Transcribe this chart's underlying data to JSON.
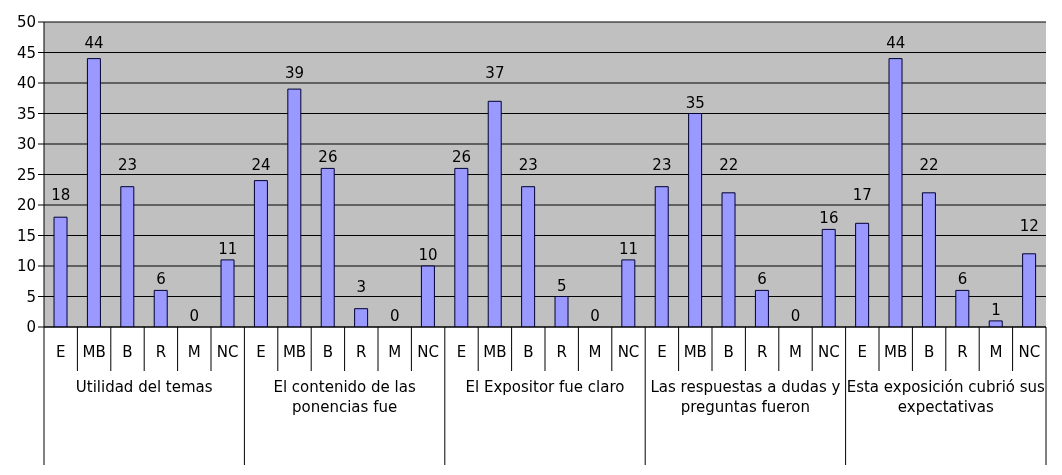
{
  "chart_data": {
    "type": "bar",
    "categories": [
      "E",
      "MB",
      "B",
      "R",
      "M",
      "NC",
      "E",
      "MB",
      "B",
      "R",
      "M",
      "NC",
      "E",
      "MB",
      "B",
      "R",
      "M",
      "NC",
      "E",
      "MB",
      "B",
      "R",
      "M",
      "NC",
      "E",
      "MB",
      "B",
      "R",
      "M",
      "NC"
    ],
    "values": [
      18,
      44,
      23,
      6,
      0,
      11,
      24,
      39,
      26,
      3,
      0,
      10,
      26,
      37,
      23,
      5,
      0,
      11,
      23,
      35,
      22,
      6,
      0,
      16,
      17,
      44,
      22,
      6,
      1,
      12
    ],
    "color": "#9999ff",
    "ylim": [
      0,
      50
    ],
    "yticks": [
      0,
      5,
      10,
      15,
      20,
      25,
      30,
      35,
      40,
      45,
      50
    ],
    "grid": "y",
    "legend": false,
    "data_labels": true,
    "annotations": [
      "Utilidad del temas",
      "El contenido de las ponencias fue",
      "El Expositor fue claro",
      "Las respuestas a dudas y preguntas fueron",
      "Esta exposición cubrió sus expectativas"
    ]
  }
}
